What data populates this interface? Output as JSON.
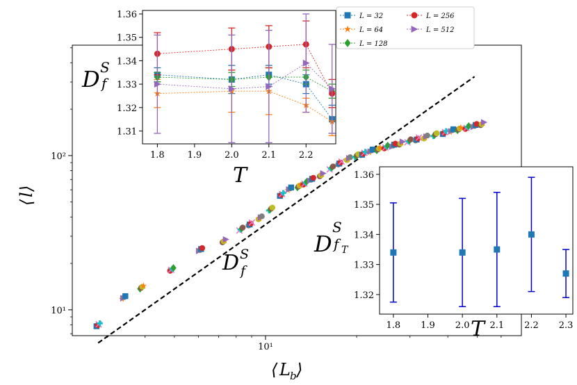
{
  "chart_data": [
    {
      "type": "scatter",
      "title": "",
      "xlabel": "⟨L_b⟩",
      "ylabel": "⟨l⟩",
      "xscale": "log",
      "yscale": "log",
      "xlim": [
        2.3,
        70
      ],
      "ylim": [
        6.8,
        520
      ],
      "x_ticks": [
        {
          "value": 10,
          "label": "10¹"
        }
      ],
      "y_ticks": [
        {
          "value": 10,
          "label": "10¹"
        },
        {
          "value": 100,
          "label": "10²"
        }
      ],
      "fit_line": {
        "label": "D_f^S",
        "style": "dashed",
        "x": [
          2.8,
          49
        ],
        "y": [
          6.1,
          325
        ]
      },
      "x": [
        2.8,
        3.4,
        3.9,
        4.9,
        6.1,
        7.3,
        8.3,
        8.9,
        9.6,
        10.4,
        11.3,
        12.0,
        12.9,
        13.5,
        14.2,
        15.3,
        16.5,
        17.6,
        18.8,
        20.0,
        21.1,
        22.3,
        23.6,
        25.0,
        26.5,
        28.0,
        29.8,
        31.7,
        33.8,
        36.3,
        39.0,
        41.2,
        43.6,
        46.3,
        49.2,
        52.0
      ],
      "y": [
        8.0,
        12.0,
        14.0,
        18.3,
        24.6,
        28.0,
        33.4,
        36.0,
        39.5,
        45.0,
        56.0,
        60.8,
        63.4,
        66.3,
        70.2,
        75.0,
        83.2,
        89.5,
        95.5,
        99.9,
        103.5,
        107.1,
        110.3,
        113.8,
        116.9,
        120.4,
        124.6,
        128.0,
        132.0,
        136.6,
        141.0,
        144.9,
        148.8,
        152.2,
        156.8,
        160.9
      ]
    },
    {
      "type": "line",
      "title": "inset-top",
      "xlabel": "T",
      "ylabel": "D_f^S",
      "xlim": [
        1.76,
        2.28
      ],
      "ylim": [
        1.3045,
        1.3615
      ],
      "x_ticks": [
        1.8,
        1.9,
        2.0,
        2.1,
        2.2
      ],
      "y_ticks": [
        1.31,
        1.32,
        1.33,
        1.34,
        1.35,
        1.36
      ],
      "x": [
        1.8,
        2.0,
        2.1,
        2.2,
        2.27
      ],
      "series": [
        {
          "name": "L = 32",
          "color": "#1f77b4",
          "marker": "square",
          "values": [
            1.334,
            1.332,
            1.334,
            1.33,
            1.315
          ],
          "errors": [
            0.003,
            0.006,
            0.004,
            0.004,
            0.006
          ]
        },
        {
          "name": "L = 64",
          "color": "#ff7f0e",
          "marker": "star",
          "values": [
            1.326,
            1.327,
            1.327,
            1.321,
            1.314
          ],
          "errors": [
            0.006,
            0.009,
            0.01,
            0.003,
            0.006
          ]
        },
        {
          "name": "L = 128",
          "color": "#2ca02c",
          "marker": "diamond",
          "values": [
            1.333,
            1.332,
            1.333,
            1.333,
            1.327
          ],
          "errors": [
            0.002,
            0.003,
            0.004,
            0.003,
            0.003
          ]
        },
        {
          "name": "L = 256",
          "color": "#d62728",
          "marker": "circle",
          "values": [
            1.343,
            1.345,
            1.346,
            1.347,
            1.326
          ],
          "errors": [
            0.009,
            0.009,
            0.009,
            0.01,
            0.006
          ]
        },
        {
          "name": "L = 512",
          "color": "#9467bd",
          "marker": "triangle",
          "values": [
            1.33,
            1.328,
            1.329,
            1.339,
            1.328
          ],
          "errors": [
            0.021,
            0.023,
            0.024,
            0.021,
            0.019
          ]
        }
      ]
    },
    {
      "type": "scatter",
      "title": "inset-bottom",
      "xlabel": "T",
      "ylabel": "D_{f_T}^S",
      "xlim": [
        1.76,
        2.32
      ],
      "ylim": [
        1.3135,
        1.3625
      ],
      "x_ticks": [
        1.8,
        1.9,
        2.0,
        2.1,
        2.2,
        2.3
      ],
      "y_ticks": [
        1.32,
        1.33,
        1.34,
        1.35,
        1.36
      ],
      "x": [
        1.8,
        2.0,
        2.1,
        2.2,
        2.3
      ],
      "values": [
        1.334,
        1.334,
        1.335,
        1.34,
        1.327
      ],
      "errors": [
        0.0165,
        0.018,
        0.019,
        0.019,
        0.008
      ],
      "color": "#0000cc"
    }
  ],
  "legend": {
    "entries": [
      {
        "label": "L = 32",
        "color": "#1f77b4",
        "marker": "square"
      },
      {
        "label": "L = 64",
        "color": "#ff7f0e",
        "marker": "star"
      },
      {
        "label": "L = 128",
        "color": "#2ca02c",
        "marker": "diamond"
      },
      {
        "label": "L = 256",
        "color": "#d62728",
        "marker": "circle"
      },
      {
        "label": "L = 512",
        "color": "#9467bd",
        "marker": "triangle"
      }
    ]
  },
  "palette": [
    "#1f77b4",
    "#ff7f0e",
    "#2ca02c",
    "#d62728",
    "#9467bd",
    "#8c564b",
    "#e377c2",
    "#7f7f7f",
    "#bcbd22",
    "#17becf"
  ]
}
